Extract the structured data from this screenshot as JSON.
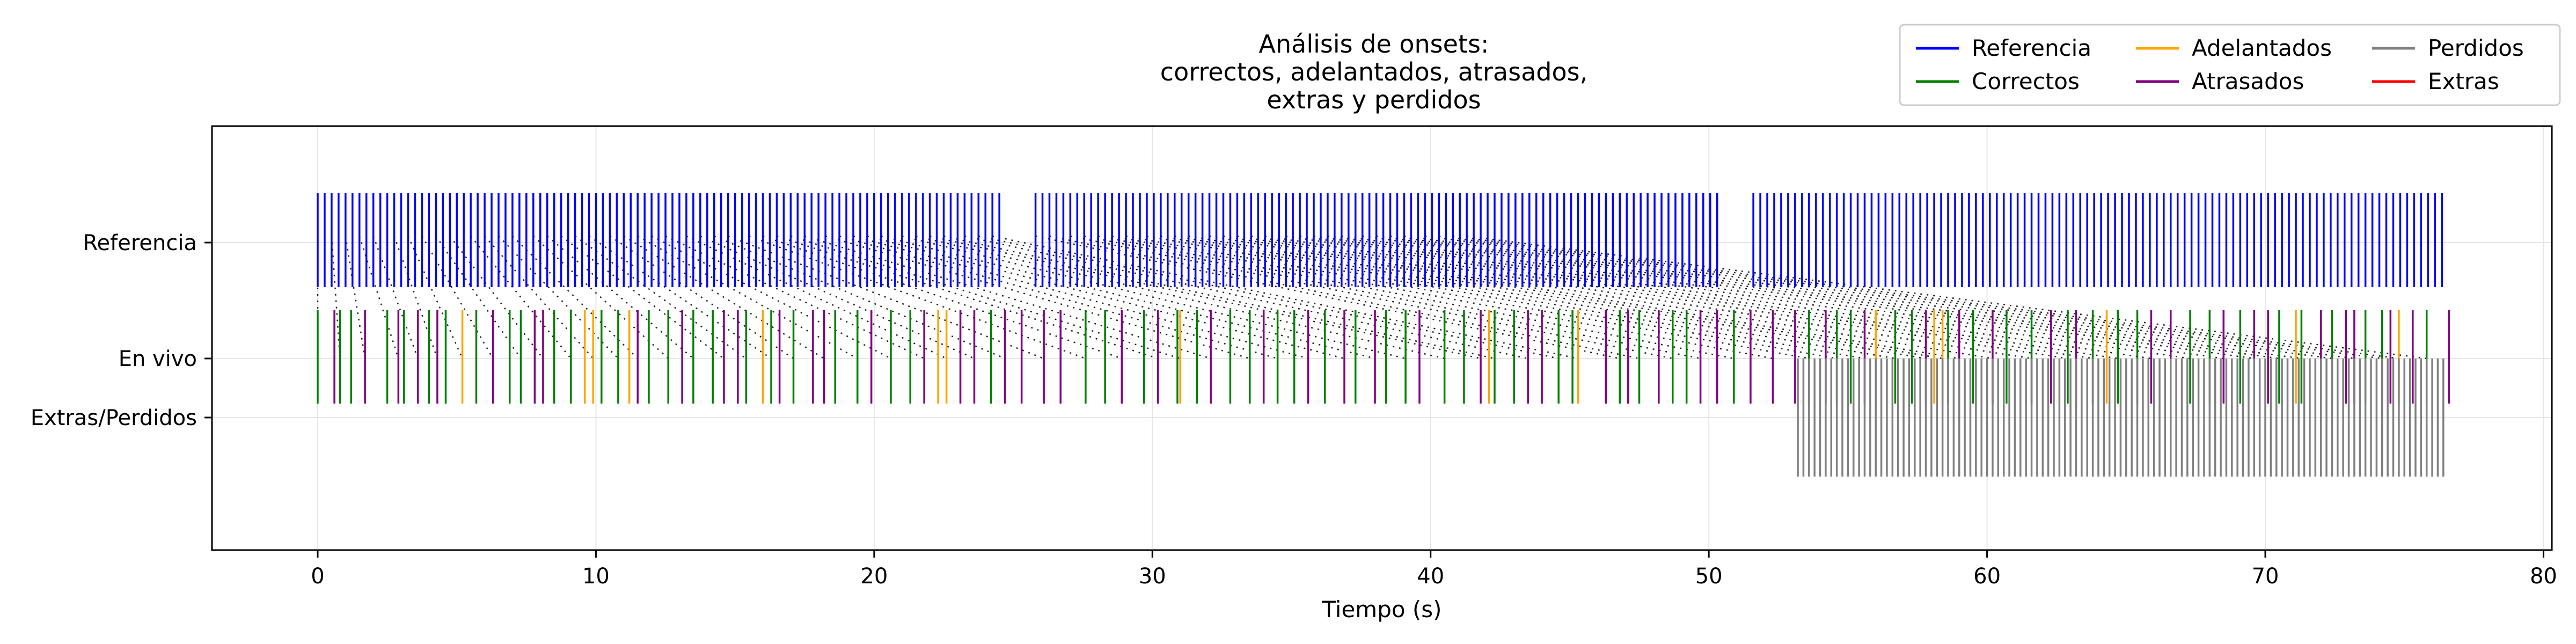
{
  "chart_data": {
    "type": "eventplot",
    "title_lines": [
      "Análisis de onsets:",
      "correctos, adelantados, atrasados,",
      "extras y perdidos"
    ],
    "xlabel": "Tiempo (s)",
    "ylabel": "",
    "xlim": [
      -3.8,
      80.3
    ],
    "x_ticks": [
      0,
      10,
      20,
      30,
      40,
      50,
      60,
      70,
      80
    ],
    "grid": true,
    "legend_placement": "top-right",
    "rows": [
      "Referencia",
      "En vivo",
      "Extras/Perdidos"
    ],
    "series": [
      {
        "name": "Referencia",
        "color": "#0000ff",
        "row": "Referencia",
        "segments": [
          {
            "start": 0.0,
            "end": 24.5,
            "step": 0.25
          },
          {
            "start": 25.8,
            "end": 50.4,
            "step": 0.25
          },
          {
            "start": 51.6,
            "end": 76.4,
            "step": 0.25
          }
        ]
      },
      {
        "name": "Correctos",
        "color": "#008000",
        "row": "En vivo",
        "times": [
          0.0,
          0.8,
          1.2,
          2.5,
          3.1,
          4.0,
          4.6,
          5.7,
          6.9,
          7.3,
          8.5,
          9.1,
          10.2,
          10.8,
          11.9,
          12.6,
          13.5,
          14.2,
          15.4,
          16.3,
          17.1,
          18.6,
          19.4,
          20.6,
          21.3,
          24.2,
          27.6,
          28.3,
          29.7,
          30.9,
          31.6,
          32.8,
          33.5,
          34.5,
          35.1,
          36.2,
          37.3,
          38.4,
          39.1,
          40.5,
          41.2,
          42.3,
          43.0,
          44.6,
          45.1,
          46.8,
          47.5,
          48.7,
          49.2,
          50.9,
          53.6,
          54.6,
          55.1,
          56.7,
          57.3,
          58.6,
          59.5,
          60.7,
          61.6,
          62.9,
          63.8,
          64.7,
          65.4,
          67.3,
          68.0,
          69.1,
          70.5,
          71.3,
          72.4,
          73.6,
          74.2,
          75.8
        ]
      },
      {
        "name": "Adelantados",
        "color": "#ffa500",
        "row": "En vivo",
        "times": [
          5.2,
          9.6,
          9.9,
          11.2,
          16.0,
          22.3,
          22.6,
          31.0,
          42.1,
          45.3,
          56.0,
          58.1,
          58.4,
          64.3,
          71.1,
          74.8
        ]
      },
      {
        "name": "Atrasados",
        "color": "#800080",
        "row": "En vivo",
        "times": [
          0.6,
          1.7,
          2.9,
          3.6,
          4.3,
          6.3,
          7.8,
          8.1,
          11.5,
          13.1,
          14.6,
          15.1,
          16.6,
          17.8,
          18.2,
          19.9,
          21.8,
          23.1,
          23.6,
          24.7,
          25.3,
          26.1,
          26.7,
          28.9,
          30.2,
          32.1,
          34.0,
          35.6,
          36.9,
          38.0,
          39.6,
          41.8,
          43.5,
          44.0,
          46.3,
          47.1,
          48.2,
          49.7,
          50.3,
          51.5,
          52.3,
          53.1,
          54.2,
          55.6,
          57.8,
          59.0,
          60.2,
          62.3,
          63.2,
          65.9,
          66.6,
          68.5,
          69.6,
          70.1,
          72.0,
          72.9,
          73.2,
          74.5,
          75.3,
          76.6
        ]
      },
      {
        "name": "Perdidos",
        "color": "#808080",
        "row": "Extras/Perdidos",
        "segments": [
          {
            "start": 53.2,
            "end": 76.4,
            "step": 0.2
          }
        ]
      },
      {
        "name": "Extras",
        "color": "#ff0000",
        "row": "Extras/Perdidos",
        "times": []
      }
    ]
  }
}
